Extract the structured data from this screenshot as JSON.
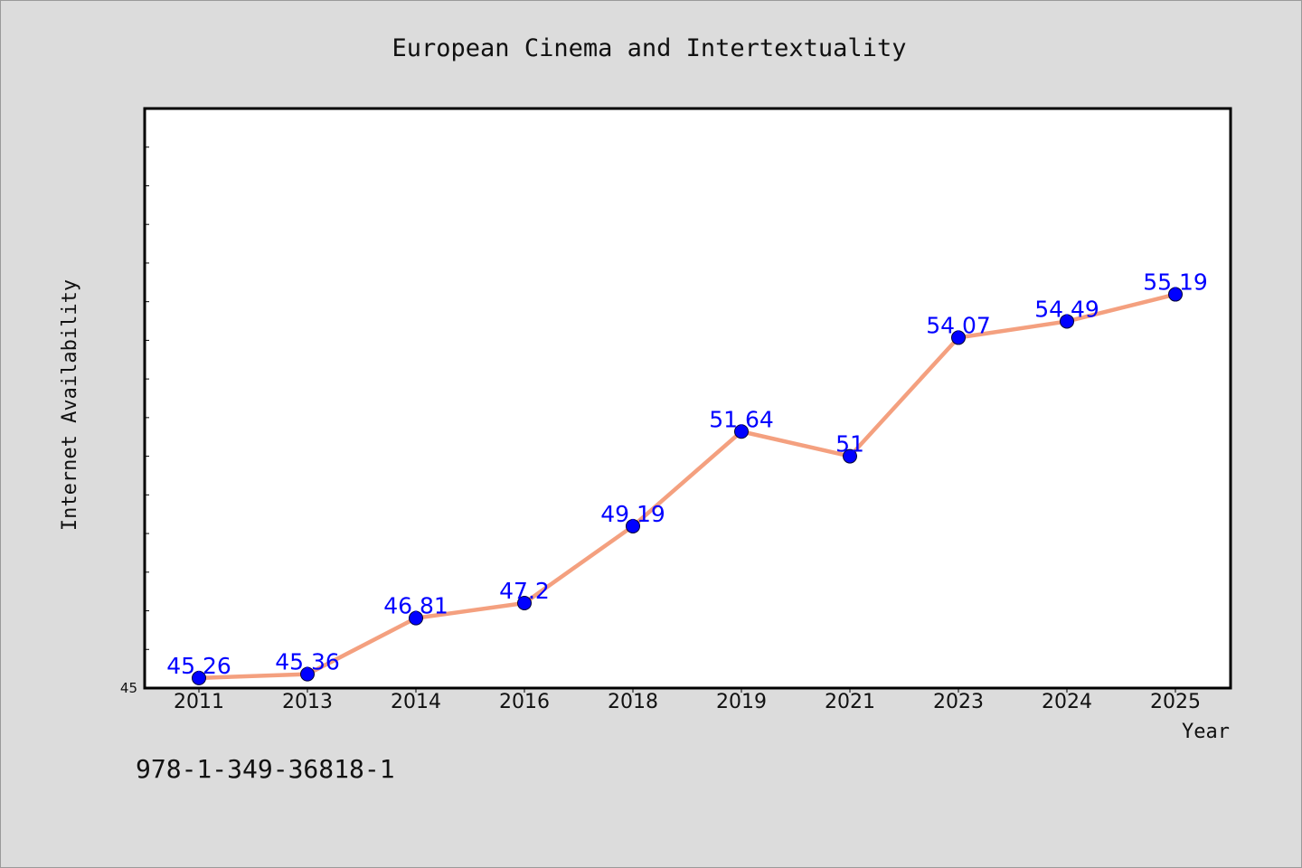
{
  "chart_data": {
    "type": "line",
    "title": "European Cinema and Intertextuality",
    "xlabel": "Year",
    "ylabel": "Internet Availability",
    "categories": [
      "2011",
      "2013",
      "2014",
      "2016",
      "2018",
      "2019",
      "2021",
      "2023",
      "2024",
      "2025"
    ],
    "series": [
      {
        "values": [
          45.26,
          45.36,
          46.81,
          47.2,
          49.19,
          51.64,
          51,
          54.07,
          54.49,
          55.19
        ],
        "labels": [
          "45.26",
          "45.36",
          "46.81",
          "47.2",
          "49.19",
          "51.64",
          "51",
          "54.07",
          "54.49",
          "55.19"
        ]
      }
    ],
    "ylim": [
      45,
      60
    ],
    "y_tick_labels": [
      "45"
    ],
    "y_minor_step": 1,
    "grid": false,
    "colors": {
      "line": "#f4a07f",
      "marker": "#0000ff",
      "label": "#0000ff",
      "background": "#dcdcdc",
      "plot_background": "#ffffff"
    }
  },
  "footer": {
    "isbn": "978-1-349-36818-1"
  }
}
